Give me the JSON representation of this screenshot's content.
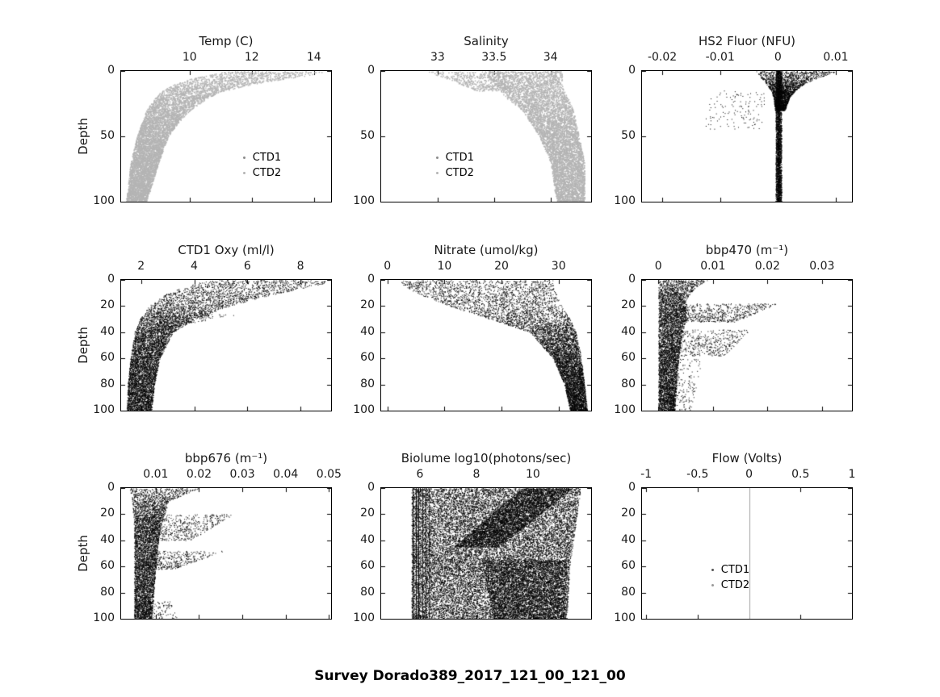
{
  "chart_data": {
    "figure_title": "Survey Dorado389_2017_121_00_121_00",
    "type": "scatter",
    "y_axis": {
      "label": "Depth",
      "inverted": true,
      "range": [
        0,
        100
      ]
    },
    "charts": [
      {
        "id": "temp",
        "title": "Temp (C)",
        "color": "#b4b4b4",
        "point_size": 1.5,
        "xlim": [
          7.8,
          14.55
        ],
        "xticks": [
          {
            "v": 10,
            "label": "10"
          },
          {
            "v": 12,
            "label": "12"
          },
          {
            "v": 14,
            "label": "14"
          }
        ],
        "ylim": [
          0,
          100
        ],
        "yticks": [
          {
            "v": 0,
            "label": "0"
          },
          {
            "v": 50,
            "label": "50"
          },
          {
            "v": 100,
            "label": "100"
          }
        ],
        "ylabel": "Depth",
        "legend": {
          "x": 0.58,
          "y": 0.62,
          "items": [
            {
              "label": "CTD1",
              "color": "#8c8c8c"
            },
            {
              "label": "CTD2",
              "color": "#b4b4b4"
            }
          ]
        },
        "bands": [
          {
            "n": 6500,
            "depths": [
              0,
              3,
              6,
              10,
              15,
              20,
              30,
              40,
              50,
              70,
              100
            ],
            "vmin": [
              11.2,
              10.6,
              10.0,
              9.5,
              9.1,
              8.9,
              8.6,
              8.45,
              8.3,
              8.1,
              7.95
            ],
            "vmax": [
              14.35,
              13.9,
              13.0,
              12.0,
              11.1,
              10.6,
              10.0,
              9.6,
              9.3,
              9.0,
              8.6
            ]
          }
        ],
        "vlines": []
      },
      {
        "id": "salinity",
        "title": "Salinity",
        "color": "#b4b4b4",
        "point_size": 1.5,
        "xlim": [
          32.5,
          34.36
        ],
        "xticks": [
          {
            "v": 33,
            "label": "33"
          },
          {
            "v": 33.5,
            "label": "33.5"
          },
          {
            "v": 34,
            "label": "34"
          }
        ],
        "ylim": [
          0,
          100
        ],
        "yticks": [
          {
            "v": 0,
            "label": "0"
          },
          {
            "v": 50,
            "label": "50"
          },
          {
            "v": 100,
            "label": "100"
          }
        ],
        "ylabel": null,
        "legend": {
          "x": 0.26,
          "y": 0.62,
          "items": [
            {
              "label": "CTD1",
              "color": "#8c8c8c"
            },
            {
              "label": "CTD2",
              "color": "#b4b4b4"
            }
          ]
        },
        "bands": [
          {
            "n": 6000,
            "depths": [
              0,
              5,
              10,
              20,
              30,
              50,
              70,
              100
            ],
            "vmin": [
              33.4,
              33.45,
              33.5,
              33.6,
              33.75,
              33.9,
              34.0,
              34.05
            ],
            "vmax": [
              34.1,
              34.1,
              34.1,
              34.15,
              34.2,
              34.25,
              34.3,
              34.3
            ]
          },
          {
            "n": 450,
            "depths": [
              0,
              15
            ],
            "vmin": [
              32.9,
              33.35
            ],
            "vmax": [
              33.55,
              33.65
            ]
          }
        ],
        "vlines": []
      },
      {
        "id": "hs2-fluor",
        "title": "HS2 Fluor (NFU)",
        "color": "#000000",
        "point_size": 1,
        "xlim": [
          -0.0235,
          0.0128
        ],
        "xticks": [
          {
            "v": -0.02,
            "label": "-0.02"
          },
          {
            "v": -0.01,
            "label": "-0.01"
          },
          {
            "v": 0,
            "label": "0"
          },
          {
            "v": 0.01,
            "label": "0.01"
          }
        ],
        "ylim": [
          0,
          100
        ],
        "yticks": [
          {
            "v": 0,
            "label": "0"
          },
          {
            "v": 50,
            "label": "50"
          },
          {
            "v": 100,
            "label": "100"
          }
        ],
        "ylabel": null,
        "legend": null,
        "bands": [
          {
            "n": 2600,
            "depths": [
              0,
              100
            ],
            "vmin": [
              -0.0004,
              -0.0004
            ],
            "vmax": [
              0.0006,
              0.0006
            ]
          },
          {
            "n": 2600,
            "depths": [
              0,
              2,
              5,
              10,
              15,
              20,
              30
            ],
            "vmin": [
              -0.004,
              -0.0035,
              -0.003,
              -0.002,
              -0.0012,
              -0.0008,
              -0.0005
            ],
            "vmax": [
              0.0105,
              0.009,
              0.007,
              0.0045,
              0.003,
              0.002,
              0.0012
            ]
          },
          {
            "n": 130,
            "depths": [
              15,
              45
            ],
            "vmin": [
              -0.012,
              -0.013
            ],
            "vmax": [
              -0.002,
              -0.003
            ]
          }
        ],
        "vlines": [
          {
            "x": 0.0001,
            "color": "#000000",
            "w": 1,
            "alpha": 1
          }
        ]
      },
      {
        "id": "ctd1-oxy",
        "title": "CTD1 Oxy (ml/l)",
        "color": "#000000",
        "point_size": 1,
        "xlim": [
          1.25,
          9.15
        ],
        "xticks": [
          {
            "v": 2,
            "label": "2"
          },
          {
            "v": 4,
            "label": "4"
          },
          {
            "v": 6,
            "label": "6"
          },
          {
            "v": 8,
            "label": "8"
          }
        ],
        "ylim": [
          0,
          100
        ],
        "yticks": [
          {
            "v": 0,
            "label": "0"
          },
          {
            "v": 20,
            "label": "20"
          },
          {
            "v": 40,
            "label": "40"
          },
          {
            "v": 60,
            "label": "60"
          },
          {
            "v": 80,
            "label": "80"
          },
          {
            "v": 100,
            "label": "100"
          }
        ],
        "ylabel": "Depth",
        "legend": null,
        "bands": [
          {
            "n": 7500,
            "depths": [
              0,
              3,
              6,
              10,
              15,
              20,
              30,
              40,
              60,
              80,
              100
            ],
            "vmin": [
              4.6,
              4.0,
              3.5,
              3.0,
              2.6,
              2.3,
              1.95,
              1.75,
              1.6,
              1.5,
              1.45
            ],
            "vmax": [
              9.1,
              8.8,
              8.2,
              7.2,
              6.2,
              5.3,
              4.0,
              3.2,
              2.7,
              2.5,
              2.4
            ]
          },
          {
            "n": 180,
            "depths": [
              26,
              36
            ],
            "vmin": [
              3.0,
              2.4
            ],
            "vmax": [
              5.8,
              3.0
            ]
          }
        ],
        "vlines": []
      },
      {
        "id": "nitrate",
        "title": "Nitrate (umol/kg)",
        "color": "#000000",
        "point_size": 1,
        "xlim": [
          -1.1,
          35.7
        ],
        "xticks": [
          {
            "v": 0,
            "label": "0"
          },
          {
            "v": 10,
            "label": "10"
          },
          {
            "v": 20,
            "label": "20"
          },
          {
            "v": 30,
            "label": "30"
          }
        ],
        "ylim": [
          0,
          100
        ],
        "yticks": [
          {
            "v": 0,
            "label": "0"
          },
          {
            "v": 20,
            "label": "20"
          },
          {
            "v": 40,
            "label": "40"
          },
          {
            "v": 60,
            "label": "60"
          },
          {
            "v": 80,
            "label": "80"
          },
          {
            "v": 100,
            "label": "100"
          }
        ],
        "ylabel": null,
        "legend": null,
        "bands": [
          {
            "n": 7500,
            "depths": [
              0,
              5,
              10,
              15,
              20,
              30,
              40,
              60,
              80,
              100
            ],
            "vmin": [
              2,
              3,
              5,
              8,
              11,
              18,
              25,
              29,
              31,
              32
            ],
            "vmax": [
              29,
              29,
              29.5,
              30,
              30.5,
              32,
              33,
              34,
              34.5,
              35
            ]
          }
        ],
        "vlines": []
      },
      {
        "id": "bbp470",
        "title": "bbp470 (m⁻¹)",
        "color": "#000000",
        "point_size": 1,
        "xlim": [
          -0.003,
          0.0355
        ],
        "xticks": [
          {
            "v": 0,
            "label": "0"
          },
          {
            "v": 0.01,
            "label": "0.01"
          },
          {
            "v": 0.02,
            "label": "0.02"
          },
          {
            "v": 0.03,
            "label": "0.03"
          }
        ],
        "ylim": [
          0,
          100
        ],
        "yticks": [
          {
            "v": 0,
            "label": "0"
          },
          {
            "v": 20,
            "label": "20"
          },
          {
            "v": 40,
            "label": "40"
          },
          {
            "v": 60,
            "label": "60"
          },
          {
            "v": 80,
            "label": "80"
          },
          {
            "v": 100,
            "label": "100"
          }
        ],
        "ylabel": null,
        "legend": null,
        "bands": [
          {
            "n": 5000,
            "depths": [
              0,
              5,
              15,
              30,
              50,
              70,
              100
            ],
            "vmin": [
              0,
              0,
              0,
              0,
              0,
              0,
              0
            ],
            "vmax": [
              0.009,
              0.007,
              0.005,
              0.005,
              0.004,
              0.0035,
              0.003
            ]
          },
          {
            "n": 750,
            "depths": [
              18,
              32
            ],
            "vmin": [
              0.001,
              0.001
            ],
            "vmax": [
              0.022,
              0.014
            ]
          },
          {
            "n": 550,
            "depths": [
              38,
              58
            ],
            "vmin": [
              0.001,
              0.001
            ],
            "vmax": [
              0.017,
              0.012
            ]
          },
          {
            "n": 220,
            "depths": [
              60,
              100
            ],
            "vmin": [
              0.001,
              0.001
            ],
            "vmax": [
              0.008,
              0.006
            ]
          }
        ],
        "vlines": []
      },
      {
        "id": "bbp676",
        "title": "bbp676 (m⁻¹)",
        "color": "#000000",
        "point_size": 1,
        "xlim": [
          0.002,
          0.0505
        ],
        "xticks": [
          {
            "v": 0.01,
            "label": "0.01"
          },
          {
            "v": 0.02,
            "label": "0.02"
          },
          {
            "v": 0.03,
            "label": "0.03"
          },
          {
            "v": 0.04,
            "label": "0.04"
          },
          {
            "v": 0.05,
            "label": "0.05"
          }
        ],
        "ylim": [
          0,
          100
        ],
        "yticks": [
          {
            "v": 0,
            "label": "0"
          },
          {
            "v": 20,
            "label": "20"
          },
          {
            "v": 40,
            "label": "40"
          },
          {
            "v": 60,
            "label": "60"
          },
          {
            "v": 80,
            "label": "80"
          },
          {
            "v": 100,
            "label": "100"
          }
        ],
        "ylabel": "Depth",
        "legend": null,
        "bands": [
          {
            "n": 5000,
            "depths": [
              0,
              10,
              30,
              60,
              100
            ],
            "vmin": [
              0.004,
              0.0045,
              0.005,
              0.005,
              0.005
            ],
            "vmax": [
              0.02,
              0.013,
              0.011,
              0.01,
              0.009
            ]
          },
          {
            "n": 650,
            "depths": [
              20,
              40
            ],
            "vmin": [
              0.006,
              0.006
            ],
            "vmax": [
              0.028,
              0.018
            ]
          },
          {
            "n": 450,
            "depths": [
              48,
              62
            ],
            "vmin": [
              0.006,
              0.006
            ],
            "vmax": [
              0.026,
              0.014
            ]
          },
          {
            "n": 130,
            "depths": [
              85,
              100
            ],
            "vmin": [
              0.006,
              0.006
            ],
            "vmax": [
              0.013,
              0.015
            ]
          }
        ],
        "vlines": []
      },
      {
        "id": "biolume",
        "title": "Biolume log10(photons/sec)",
        "color": "#000000",
        "point_size": 1,
        "xlim": [
          4.63,
          12.06
        ],
        "xticks": [
          {
            "v": 6,
            "label": "6"
          },
          {
            "v": 8,
            "label": "8"
          },
          {
            "v": 10,
            "label": "10"
          }
        ],
        "ylim": [
          0,
          100
        ],
        "yticks": [
          {
            "v": 0,
            "label": "0"
          },
          {
            "v": 20,
            "label": "20"
          },
          {
            "v": 40,
            "label": "40"
          },
          {
            "v": 60,
            "label": "60"
          },
          {
            "v": 80,
            "label": "80"
          },
          {
            "v": 100,
            "label": "100"
          }
        ],
        "ylabel": null,
        "legend": null,
        "bands": [
          {
            "n": 20000,
            "depths": [
              0,
              30,
              60,
              100
            ],
            "vmin": [
              5.7,
              5.7,
              5.7,
              5.7
            ],
            "vmax": [
              11.7,
              11.5,
              11.3,
              11.2
            ]
          },
          {
            "n": 4000,
            "depths": [
              0,
              45
            ],
            "vmin": [
              9.6,
              7.2
            ],
            "vmax": [
              11.4,
              8.8
            ]
          },
          {
            "n": 4000,
            "depths": [
              55,
              100
            ],
            "vmin": [
              8.2,
              8.6
            ],
            "vmax": [
              11.2,
              11.1
            ]
          }
        ],
        "vlines": [
          {
            "x": 5.75,
            "color": "#000000",
            "w": 1,
            "alpha": 0.9
          },
          {
            "x": 5.85,
            "color": "#000000",
            "w": 1,
            "alpha": 0.8
          },
          {
            "x": 5.95,
            "color": "#000000",
            "w": 1,
            "alpha": 0.9
          },
          {
            "x": 6.08,
            "color": "#000000",
            "w": 1,
            "alpha": 0.7
          },
          {
            "x": 6.2,
            "color": "#000000",
            "w": 1,
            "alpha": 0.8
          },
          {
            "x": 6.32,
            "color": "#000000",
            "w": 1,
            "alpha": 0.6
          }
        ]
      },
      {
        "id": "flow",
        "title": "Flow (Volts)",
        "color": "#000000",
        "point_size": 1,
        "xlim": [
          -1.04,
          1.0
        ],
        "xticks": [
          {
            "v": -1,
            "label": "-1"
          },
          {
            "v": -0.5,
            "label": "-0.5"
          },
          {
            "v": 0,
            "label": "0"
          },
          {
            "v": 0.5,
            "label": "0.5"
          },
          {
            "v": 1,
            "label": "1"
          }
        ],
        "ylim": [
          0,
          100
        ],
        "yticks": [
          {
            "v": 0,
            "label": "0"
          },
          {
            "v": 20,
            "label": "20"
          },
          {
            "v": 40,
            "label": "40"
          },
          {
            "v": 60,
            "label": "60"
          },
          {
            "v": 80,
            "label": "80"
          },
          {
            "v": 100,
            "label": "100"
          }
        ],
        "ylabel": null,
        "legend": {
          "x": 0.33,
          "y": 0.58,
          "items": [
            {
              "label": "CTD1",
              "color": "#555555"
            },
            {
              "label": "CTD2",
              "color": "#999999"
            }
          ]
        },
        "bands": [],
        "vlines": [
          {
            "x": 0,
            "color": "#a0a0a0",
            "w": 1,
            "alpha": 1
          }
        ]
      }
    ]
  }
}
